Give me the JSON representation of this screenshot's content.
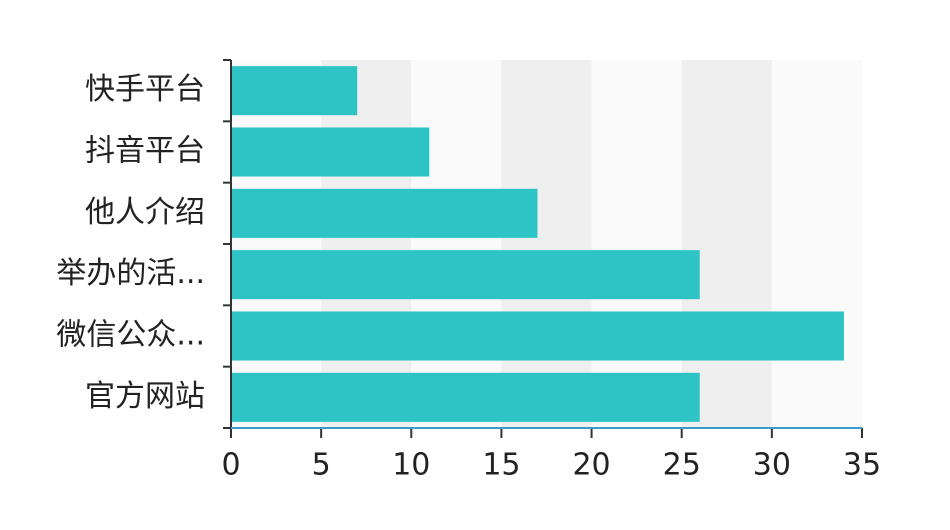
{
  "chart_data": {
    "type": "barh",
    "categories": [
      "快手平台",
      "抖音平台",
      "他人介绍",
      "举办的活...",
      "微信公众...",
      "官方网站"
    ],
    "values": [
      7,
      11,
      17,
      26,
      34,
      26
    ],
    "color": "#2ec4c6",
    "xlim": [
      0,
      35
    ],
    "xticks": [
      0,
      5,
      10,
      15,
      20,
      25,
      30,
      35
    ],
    "grid": true
  }
}
